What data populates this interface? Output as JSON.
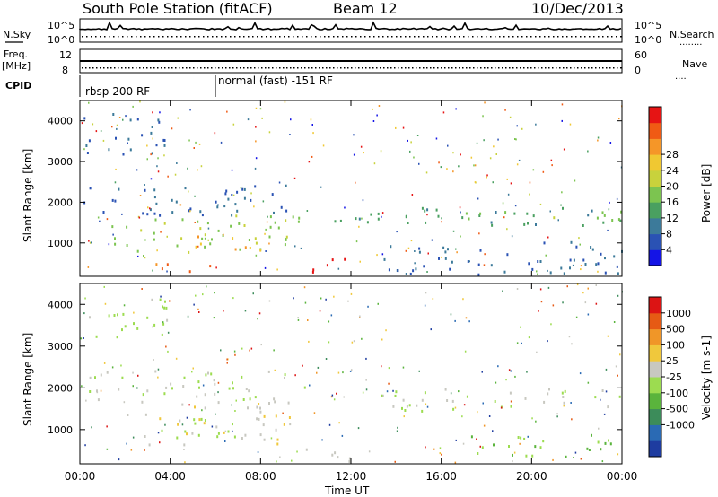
{
  "header": {
    "station": "South Pole Station (fitACF)",
    "beam": "Beam 12",
    "date": "10/Dec/2013"
  },
  "left_labels": {
    "nsky": "N.Sky",
    "freq_top": "Freq.",
    "freq_unit": "[MHz]",
    "cpid": "CPID"
  },
  "right_labels": {
    "nsearch": "N.Search",
    "nsearch_dots": "........",
    "nave": "Nave",
    "nave_dots": "...."
  },
  "noise_ticks": {
    "left_top": "10^5",
    "left_bottom": "10^0",
    "right_top": "10^5",
    "right_bottom": "10^0"
  },
  "freq_ticks": {
    "left_top": "12",
    "left_bottom": "8",
    "right_top": "60",
    "right_bottom": "0"
  },
  "cpid_labels": {
    "first": "rbsp 200 RF",
    "second": "normal (fast) -151 RF"
  },
  "power_scale": {
    "label": "Power [dB]",
    "ticks": [
      "4",
      "8",
      "12",
      "16",
      "20",
      "24",
      "28"
    ],
    "colors": [
      "#1414e6",
      "#2a52b4",
      "#3c7a9a",
      "#4aa060",
      "#7cc450",
      "#c8d23c",
      "#f0c832",
      "#f59628",
      "#f05a14",
      "#e61414"
    ]
  },
  "velocity_scale": {
    "label": "Velocity [m s-1]",
    "ticks": [
      "1000",
      "500",
      "100",
      "25",
      "-25",
      "-100",
      "-500",
      "-1000"
    ],
    "colors": [
      "#1e3ca0",
      "#2a6ab4",
      "#3c8c5a",
      "#5ab43c",
      "#9cdc50",
      "#c8c8c0",
      "#f0c83c",
      "#f09628",
      "#e65a14",
      "#dc1414"
    ]
  },
  "axes": {
    "ylabel": "Slant Range [km]",
    "yticks": [
      "1000",
      "2000",
      "3000",
      "4000"
    ],
    "xlabel": "Time UT",
    "xticks": [
      "00:00",
      "04:00",
      "08:00",
      "12:00",
      "16:00",
      "20:00",
      "00:00"
    ]
  },
  "chart_data": [
    {
      "type": "heatmap",
      "title": "Power",
      "xlabel": "",
      "ylabel": "Slant Range [km]",
      "xlim": [
        0,
        24
      ],
      "ylim": [
        180,
        4500
      ],
      "colorbar": {
        "label": "Power [dB]",
        "range": [
          0,
          30
        ]
      },
      "regions": [
        {
          "x": [
            0.0,
            10.5
          ],
          "y": [
            1700,
            2450
          ],
          "value": 6
        },
        {
          "x": [
            10.6,
            24.0
          ],
          "y": [
            1450,
            1900
          ],
          "value": 10
        },
        {
          "x": [
            16.0,
            24.0
          ],
          "y": [
            1550,
            1800
          ],
          "value": 14
        },
        {
          "x": [
            1.3,
            10.0
          ],
          "y": [
            700,
            1700
          ],
          "value": 14
        },
        {
          "x": [
            5.0,
            8.0
          ],
          "y": [
            750,
            1250
          ],
          "value": 22
        },
        {
          "x": [
            9.5,
            12.0
          ],
          "y": [
            280,
            650
          ],
          "value": 28
        },
        {
          "x": [
            3.0,
            6.0
          ],
          "y": [
            300,
            600
          ],
          "value": 24
        },
        {
          "x": [
            0.0,
            4.0
          ],
          "y": [
            3200,
            4200
          ],
          "value": 6
        },
        {
          "x": [
            13.0,
            24.0
          ],
          "y": [
            250,
            1100
          ],
          "value": 6
        }
      ]
    },
    {
      "type": "heatmap",
      "title": "Velocity",
      "xlabel": "Time UT",
      "ylabel": "Slant Range [km]",
      "xlim": [
        0,
        24
      ],
      "ylim": [
        180,
        4500
      ],
      "colorbar": {
        "label": "Velocity [m s-1]",
        "range": [
          -1000,
          1000
        ]
      },
      "regions": [
        {
          "x": [
            0.0,
            10.0
          ],
          "y": [
            1700,
            2450
          ],
          "value": 0
        },
        {
          "x": [
            12.5,
            24.0
          ],
          "y": [
            1450,
            2000
          ],
          "value": 0
        },
        {
          "x": [
            2.5,
            9.5
          ],
          "y": [
            650,
            1700
          ],
          "value": 150
        },
        {
          "x": [
            3.0,
            7.0
          ],
          "y": [
            700,
            1300
          ],
          "value": -100
        },
        {
          "x": [
            9.5,
            12.0
          ],
          "y": [
            250,
            650
          ],
          "value": 60
        },
        {
          "x": [
            17.0,
            24.0
          ],
          "y": [
            300,
            900
          ],
          "value": -200
        },
        {
          "x": [
            0.0,
            4.0
          ],
          "y": [
            3200,
            4200
          ],
          "value": -50
        }
      ]
    }
  ]
}
